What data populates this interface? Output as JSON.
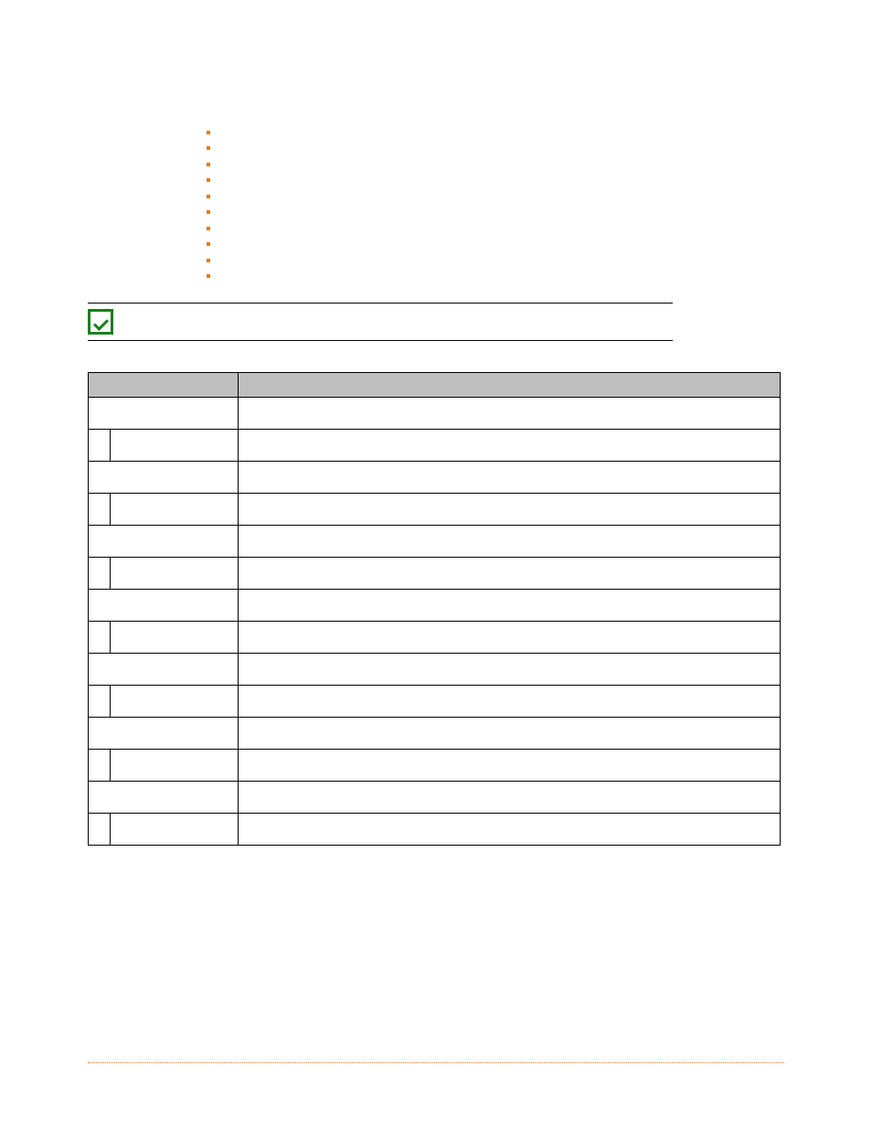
{
  "colors": {
    "bullet": "#e97826",
    "check_border": "#1a7f1a",
    "table_header_bg": "#bfbfbf",
    "table_border": "#000000",
    "footer_rule": "#e97826",
    "background": "#ffffff"
  },
  "bullets": [
    {
      "text": ""
    },
    {
      "text": ""
    },
    {
      "text": ""
    },
    {
      "text": ""
    },
    {
      "text": ""
    },
    {
      "text": ""
    },
    {
      "text": ""
    },
    {
      "text": ""
    },
    {
      "text": ""
    },
    {
      "text": ""
    }
  ],
  "section": {
    "title": ""
  },
  "table": {
    "headers": {
      "responsibility": "",
      "action": ""
    },
    "rows": [
      {
        "span": true,
        "responsibility": "",
        "action": ""
      },
      {
        "span": false,
        "index": "",
        "responsibility": "",
        "action": ""
      },
      {
        "span": true,
        "responsibility": "",
        "action": ""
      },
      {
        "span": false,
        "index": "",
        "responsibility": "",
        "action": ""
      },
      {
        "span": true,
        "responsibility": "",
        "action": ""
      },
      {
        "span": false,
        "index": "",
        "responsibility": "",
        "action": ""
      },
      {
        "span": true,
        "responsibility": "",
        "action": ""
      },
      {
        "span": false,
        "index": "",
        "responsibility": "",
        "action": ""
      },
      {
        "span": true,
        "responsibility": "",
        "action": ""
      },
      {
        "span": false,
        "index": "",
        "responsibility": "",
        "action": ""
      },
      {
        "span": true,
        "responsibility": "",
        "action": ""
      },
      {
        "span": false,
        "index": "",
        "responsibility": "",
        "action": ""
      },
      {
        "span": true,
        "responsibility": "",
        "action": ""
      },
      {
        "span": false,
        "index": "",
        "responsibility": "",
        "action": ""
      }
    ]
  }
}
